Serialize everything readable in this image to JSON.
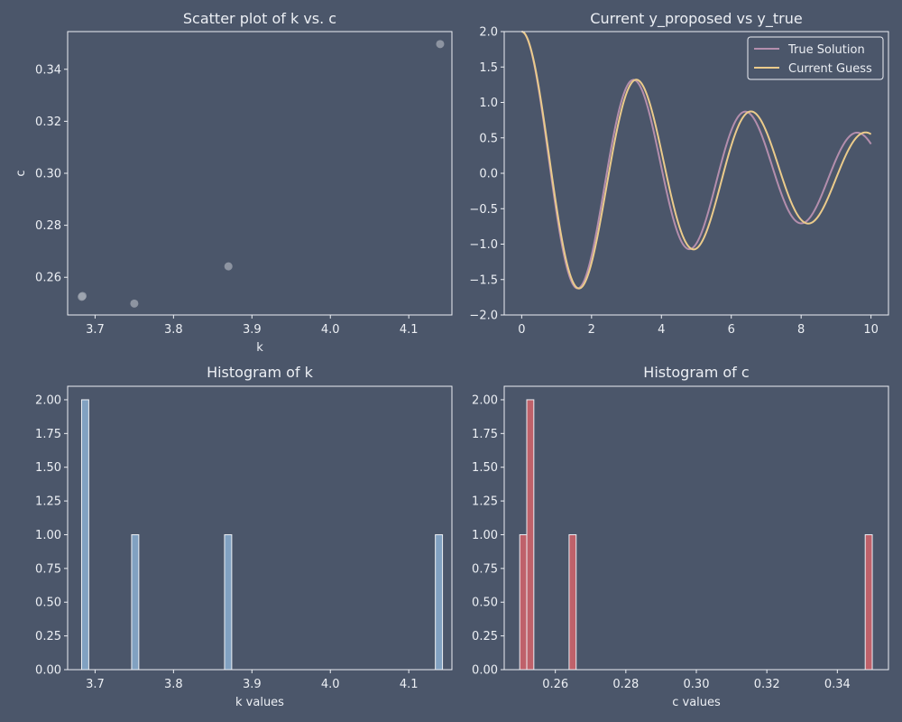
{
  "theme": {
    "background": "#4b566a",
    "text": "#eceff4",
    "spine": "#eceff4"
  },
  "chart_data": [
    {
      "id": "scatter",
      "type": "scatter",
      "title": "Scatter plot of k vs. c",
      "xlabel": "k",
      "ylabel": "c",
      "xlim": [
        3.665,
        4.155
      ],
      "ylim": [
        0.2455,
        0.3545
      ],
      "xticks": [
        3.7,
        3.8,
        3.9,
        4.0,
        4.1
      ],
      "xtick_labels": [
        "3.7",
        "3.8",
        "3.9",
        "4.0",
        "4.1"
      ],
      "yticks": [
        0.26,
        0.28,
        0.3,
        0.32,
        0.34
      ],
      "ytick_labels": [
        "0.26",
        "0.28",
        "0.30",
        "0.32",
        "0.34"
      ],
      "points": [
        {
          "x": 3.683,
          "y": 0.2525
        },
        {
          "x": 3.684,
          "y": 0.2528
        },
        {
          "x": 3.75,
          "y": 0.2499
        },
        {
          "x": 3.87,
          "y": 0.2642
        },
        {
          "x": 4.14,
          "y": 0.3497
        }
      ],
      "marker_color": "#a3a9b4"
    },
    {
      "id": "lines",
      "type": "line",
      "title": "Current y_proposed vs y_true",
      "xlabel": "",
      "ylabel": "",
      "xlim": [
        -0.5,
        10.5
      ],
      "ylim": [
        -2.0,
        2.0
      ],
      "xticks": [
        0,
        2,
        4,
        6,
        8,
        10
      ],
      "xtick_labels": [
        "0",
        "2",
        "4",
        "6",
        "8",
        "10"
      ],
      "yticks": [
        -2.0,
        -1.5,
        -1.0,
        -0.5,
        0.0,
        0.5,
        1.0,
        1.5,
        2.0
      ],
      "ytick_labels": [
        "−2.0",
        "−1.5",
        "−1.0",
        "−0.5",
        "0.0",
        "0.5",
        "1.0",
        "1.5",
        "2.0"
      ],
      "legend_position": "top-right",
      "series": [
        {
          "name": "True Solution",
          "color": "#b48ead",
          "k": 3.87,
          "c": 0.26,
          "y0": 2.0
        },
        {
          "name": "Current Guess",
          "color": "#ebcb8b",
          "k": 3.683,
          "c": 0.2525,
          "y0": 2.0
        }
      ],
      "x_range": [
        0,
        10
      ]
    },
    {
      "id": "hist_k",
      "type": "bar",
      "title": "Histogram of k",
      "xlabel": "k values",
      "ylabel": "",
      "xlim": [
        3.665,
        4.155
      ],
      "ylim": [
        0,
        2.1
      ],
      "xticks": [
        3.7,
        3.8,
        3.9,
        4.0,
        4.1
      ],
      "xtick_labels": [
        "3.7",
        "3.8",
        "3.9",
        "4.0",
        "4.1"
      ],
      "yticks": [
        0,
        0.25,
        0.5,
        0.75,
        1.0,
        1.25,
        1.5,
        1.75,
        2.0
      ],
      "ytick_labels": [
        "0.00",
        "0.25",
        "0.50",
        "0.75",
        "1.00",
        "1.25",
        "1.50",
        "1.75",
        "2.00"
      ],
      "bar_color": "#81a1c1",
      "bars": [
        {
          "x0": 3.6828,
          "x1": 3.6919,
          "value": 2
        },
        {
          "x0": 3.7466,
          "x1": 3.7557,
          "value": 1
        },
        {
          "x0": 3.8651,
          "x1": 3.8742,
          "value": 1
        },
        {
          "x0": 4.1339,
          "x1": 4.143,
          "value": 1
        }
      ]
    },
    {
      "id": "hist_c",
      "type": "bar",
      "title": "Histogram of c",
      "xlabel": "c values",
      "ylabel": "",
      "xlim": [
        0.2455,
        0.3545
      ],
      "ylim": [
        0,
        2.1
      ],
      "xticks": [
        0.26,
        0.28,
        0.3,
        0.32,
        0.34
      ],
      "xtick_labels": [
        "0.26",
        "0.28",
        "0.30",
        "0.32",
        "0.34"
      ],
      "yticks": [
        0,
        0.25,
        0.5,
        0.75,
        1.0,
        1.25,
        1.5,
        1.75,
        2.0
      ],
      "ytick_labels": [
        "0.00",
        "0.25",
        "0.50",
        "0.75",
        "1.00",
        "1.25",
        "1.50",
        "1.75",
        "2.00"
      ],
      "bar_color": "#bf616a",
      "bars": [
        {
          "x0": 0.2499,
          "x1": 0.2519,
          "value": 1
        },
        {
          "x0": 0.2519,
          "x1": 0.2539,
          "value": 2
        },
        {
          "x0": 0.2639,
          "x1": 0.2659,
          "value": 1
        },
        {
          "x0": 0.3479,
          "x1": 0.3499,
          "value": 1
        }
      ]
    }
  ]
}
